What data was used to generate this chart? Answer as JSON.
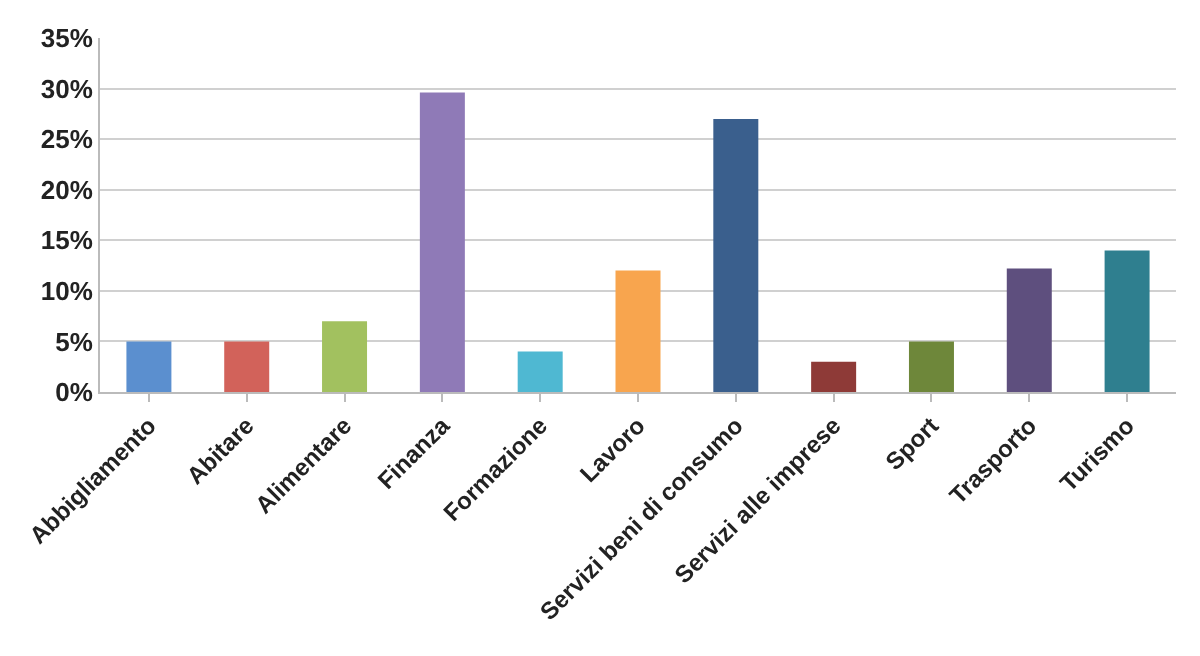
{
  "chart_data": {
    "type": "bar",
    "categories": [
      "Abbigliamento",
      "Abitare",
      "Alimentare",
      "Finanza",
      "Formazione",
      "Lavoro",
      "Servizi beni di consumo",
      "Servizi alle imprese",
      "Sport",
      "Trasporto",
      "Turismo"
    ],
    "values": [
      5,
      5,
      7,
      29.6,
      4,
      12,
      27,
      3,
      5,
      12.2,
      14
    ],
    "colors": [
      "#5b8fcf",
      "#d2625a",
      "#a2c15f",
      "#8f7ab7",
      "#4fb8d2",
      "#f8a54e",
      "#3a5f8d",
      "#8e3a37",
      "#6e873a",
      "#5e4f7e",
      "#2f7f8f"
    ],
    "ylim": [
      0,
      35
    ],
    "yticks": [
      {
        "value": 0,
        "label": "0%"
      },
      {
        "value": 5,
        "label": "5%"
      },
      {
        "value": 10,
        "label": "10%"
      },
      {
        "value": 15,
        "label": "15%"
      },
      {
        "value": 20,
        "label": "20%"
      },
      {
        "value": 25,
        "label": "25%"
      },
      {
        "value": 30,
        "label": "30%"
      },
      {
        "value": 35,
        "label": "35%"
      }
    ],
    "grid": "y"
  }
}
